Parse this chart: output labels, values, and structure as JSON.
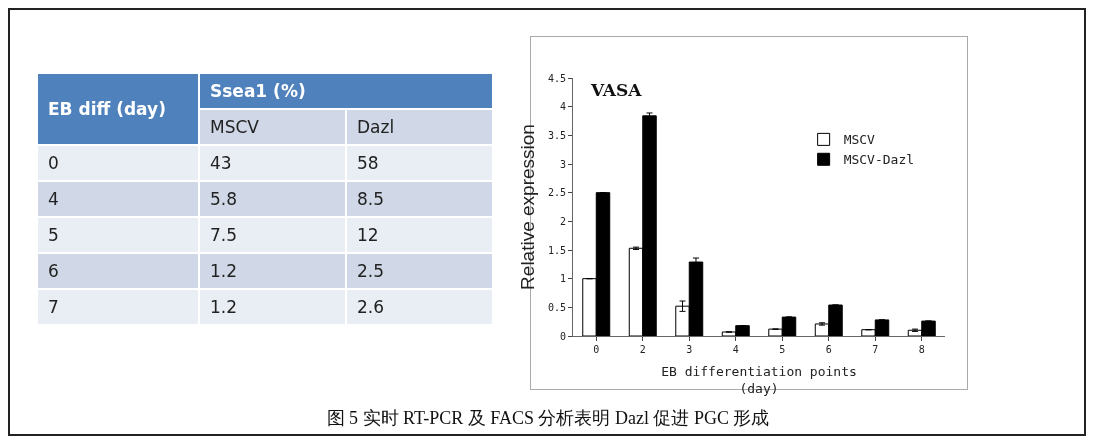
{
  "chart_data": [
    {
      "type": "heatmap",
      "ylabel": "EB diff (day)",
      "xlabel": "Ssea1 (%)",
      "categories": [
        "MSCV",
        "Dazl"
      ],
      "y_categories": [
        "0",
        "4",
        "5",
        "6",
        "7"
      ],
      "data_labels": true,
      "cells": [
        [
          43,
          58
        ],
        [
          5.8,
          8.5
        ],
        [
          7.5,
          12
        ],
        [
          1.2,
          2.5
        ],
        [
          1.2,
          2.6
        ]
      ]
    },
    {
      "type": "bar",
      "title": "VASA",
      "xlabel": "EB differentiation points\n(day)",
      "ylabel": "Relative expression",
      "categories": [
        "0",
        "2",
        "3",
        "4",
        "5",
        "6",
        "7",
        "8"
      ],
      "ylim": [
        0,
        4.5
      ],
      "yticks": [
        0,
        0.5,
        1,
        1.5,
        2,
        2.5,
        3,
        3.5,
        4,
        4.5
      ],
      "grid": false,
      "legend": "top right",
      "series": [
        {
          "name": "MSCV",
          "color": "#ffffff",
          "values": [
            1.0,
            1.53,
            0.52,
            0.07,
            0.12,
            0.21,
            0.11,
            0.1
          ],
          "errors": [
            null,
            0.02,
            0.09,
            null,
            null,
            0.02,
            null,
            0.02
          ]
        },
        {
          "name": "MSCV-Dazl",
          "color": "#000000",
          "values": [
            2.5,
            3.84,
            1.29,
            0.18,
            0.33,
            0.54,
            0.28,
            0.26
          ],
          "errors": [
            null,
            0.05,
            0.07,
            null,
            null,
            null,
            null,
            null
          ]
        }
      ],
      "annotations": [
        "图 5  实时 RT-PCR 及 FACS 分析表明 Dazl 促进 PGC 形成"
      ]
    }
  ]
}
